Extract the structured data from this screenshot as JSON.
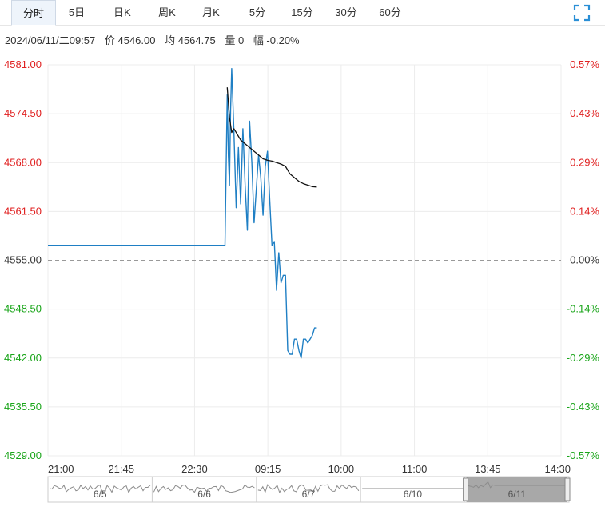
{
  "tabs": [
    {
      "label": "分时",
      "active": true
    },
    {
      "label": "5日",
      "active": false
    },
    {
      "label": "日K",
      "active": false
    },
    {
      "label": "周K",
      "active": false
    },
    {
      "label": "月K",
      "active": false
    },
    {
      "label": "5分",
      "active": false
    },
    {
      "label": "15分",
      "active": false
    },
    {
      "label": "30分",
      "active": false
    },
    {
      "label": "60分",
      "active": false
    }
  ],
  "toolbar": {
    "expand_icon": "fullscreen-expand-icon"
  },
  "info": {
    "datetime": "2024/06/11/二09:57",
    "price": "价 4546.00",
    "avg": "均 4564.75",
    "volume": "量 0",
    "change": "幅 -0.20%"
  },
  "colors": {
    "up": "#e02020",
    "down": "#1aa51a",
    "price_line": "#1f7fc4",
    "avg_line": "#111111",
    "grid": "#ececec",
    "baseline": "#999999",
    "accent": "#2a8fd6"
  },
  "chart_data": {
    "type": "line",
    "ylim": [
      4529.0,
      4581.0
    ],
    "base_price": 4555.0,
    "y_ticks_left": [
      "4581.00",
      "4574.50",
      "4568.00",
      "4561.50",
      "4555.00",
      "4548.50",
      "4542.00",
      "4535.50",
      "4529.00"
    ],
    "y_ticks_right": [
      "0.57%",
      "0.43%",
      "0.29%",
      "0.14%",
      "0.00%",
      "-0.14%",
      "-0.29%",
      "-0.43%",
      "-0.57%"
    ],
    "x_ticks": [
      "21:00",
      "21:45",
      "22:30",
      "09:15",
      "10:00",
      "11:00",
      "13:45",
      "14:30"
    ],
    "series": [
      {
        "key": "price",
        "x": [
          0,
          79,
          80,
          80.5,
          81,
          81.5,
          82,
          83,
          84,
          85,
          86,
          87,
          88,
          89,
          90,
          91,
          92,
          93,
          94,
          95,
          96,
          97,
          98,
          99,
          100,
          101,
          102,
          103,
          104,
          105,
          106,
          107,
          108,
          109,
          110,
          111,
          112,
          113,
          114,
          115,
          116,
          117,
          118,
          119,
          120
        ],
        "values": [
          4557.0,
          4557.0,
          4577.0,
          4569.0,
          4565.0,
          4575.0,
          4580.5,
          4572.0,
          4562.0,
          4570.0,
          4562.5,
          4572.5,
          4565.0,
          4559.0,
          4573.5,
          4568.0,
          4560.0,
          4564.5,
          4569.0,
          4566.0,
          4561.0,
          4567.5,
          4569.5,
          4563.0,
          4557.0,
          4557.5,
          4551.0,
          4556.0,
          4552.0,
          4553.0,
          4553.0,
          4543.0,
          4542.5,
          4542.5,
          4544.5,
          4544.5,
          4543.0,
          4542.0,
          4544.5,
          4544.5,
          4544.0,
          4544.5,
          4545.0,
          4546.0,
          4546.0
        ]
      },
      {
        "key": "average",
        "x": [
          80,
          81,
          82,
          83,
          84,
          85,
          86,
          88,
          90,
          92,
          94,
          96,
          98,
          100,
          102,
          104,
          106,
          108,
          110,
          112,
          114,
          116,
          118,
          120
        ],
        "values": [
          4578.0,
          4574.0,
          4572.0,
          4572.5,
          4572.0,
          4571.5,
          4571.0,
          4570.5,
          4570.0,
          4569.5,
          4569.0,
          4568.5,
          4568.3,
          4568.2,
          4568.0,
          4567.8,
          4567.5,
          4566.5,
          4566.0,
          4565.5,
          4565.2,
          4565.0,
          4564.8,
          4564.75
        ]
      }
    ]
  },
  "navigator": {
    "labels": [
      "6/5",
      "6/6",
      "6/7",
      "6/10",
      "6/11"
    ]
  }
}
